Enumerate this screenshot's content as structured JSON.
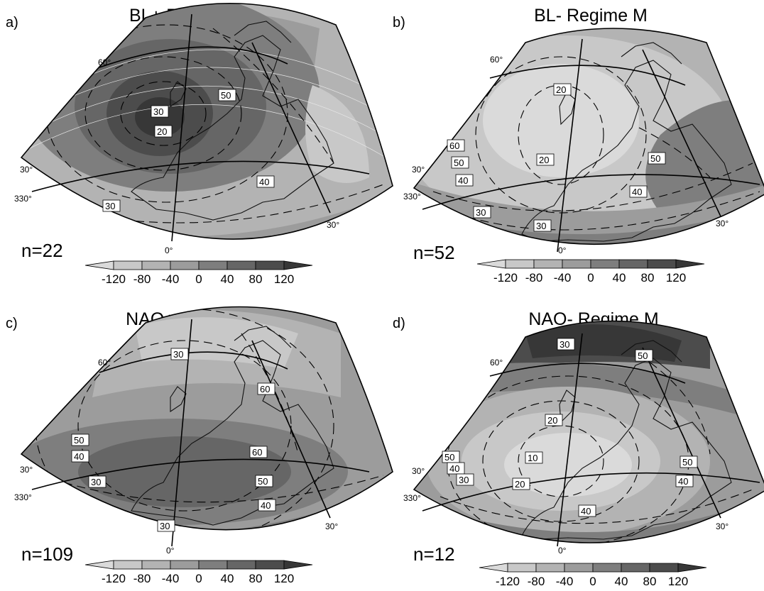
{
  "figure": {
    "colorbar": {
      "ticks": [
        "-120",
        "-80",
        "-40",
        "0",
        "40",
        "80",
        "120"
      ],
      "colors": [
        "#dadada",
        "#c8c8c8",
        "#b3b3b3",
        "#9c9c9c",
        "#7e7e7e",
        "#666666",
        "#4c4c4c",
        "#373737"
      ]
    },
    "degree_labels": {
      "lat60": "60°",
      "lat30": "30°",
      "lon330": "330°",
      "lon0": "0°",
      "lon30": "30°"
    },
    "panels": [
      {
        "letter": "a)",
        "title": "BL+ Regime M",
        "n": "n=22",
        "contour_labels": [
          "50",
          "30",
          "20",
          "40",
          "30"
        ]
      },
      {
        "letter": "b)",
        "title": "BL- Regime M",
        "n": "n=52",
        "contour_labels": [
          "20",
          "60",
          "50",
          "40",
          "20",
          "50",
          "40",
          "30",
          "30"
        ]
      },
      {
        "letter": "c)",
        "title": "NAO+ Regime M",
        "n": "n=109",
        "contour_labels": [
          "30",
          "60",
          "50",
          "40",
          "60",
          "30",
          "50",
          "40",
          "30"
        ]
      },
      {
        "letter": "d)",
        "title": "NAO- Regime M",
        "n": "n=12",
        "contour_labels": [
          "30",
          "50",
          "20",
          "50",
          "40",
          "30",
          "10",
          "20",
          "50",
          "40",
          "40"
        ]
      }
    ]
  }
}
